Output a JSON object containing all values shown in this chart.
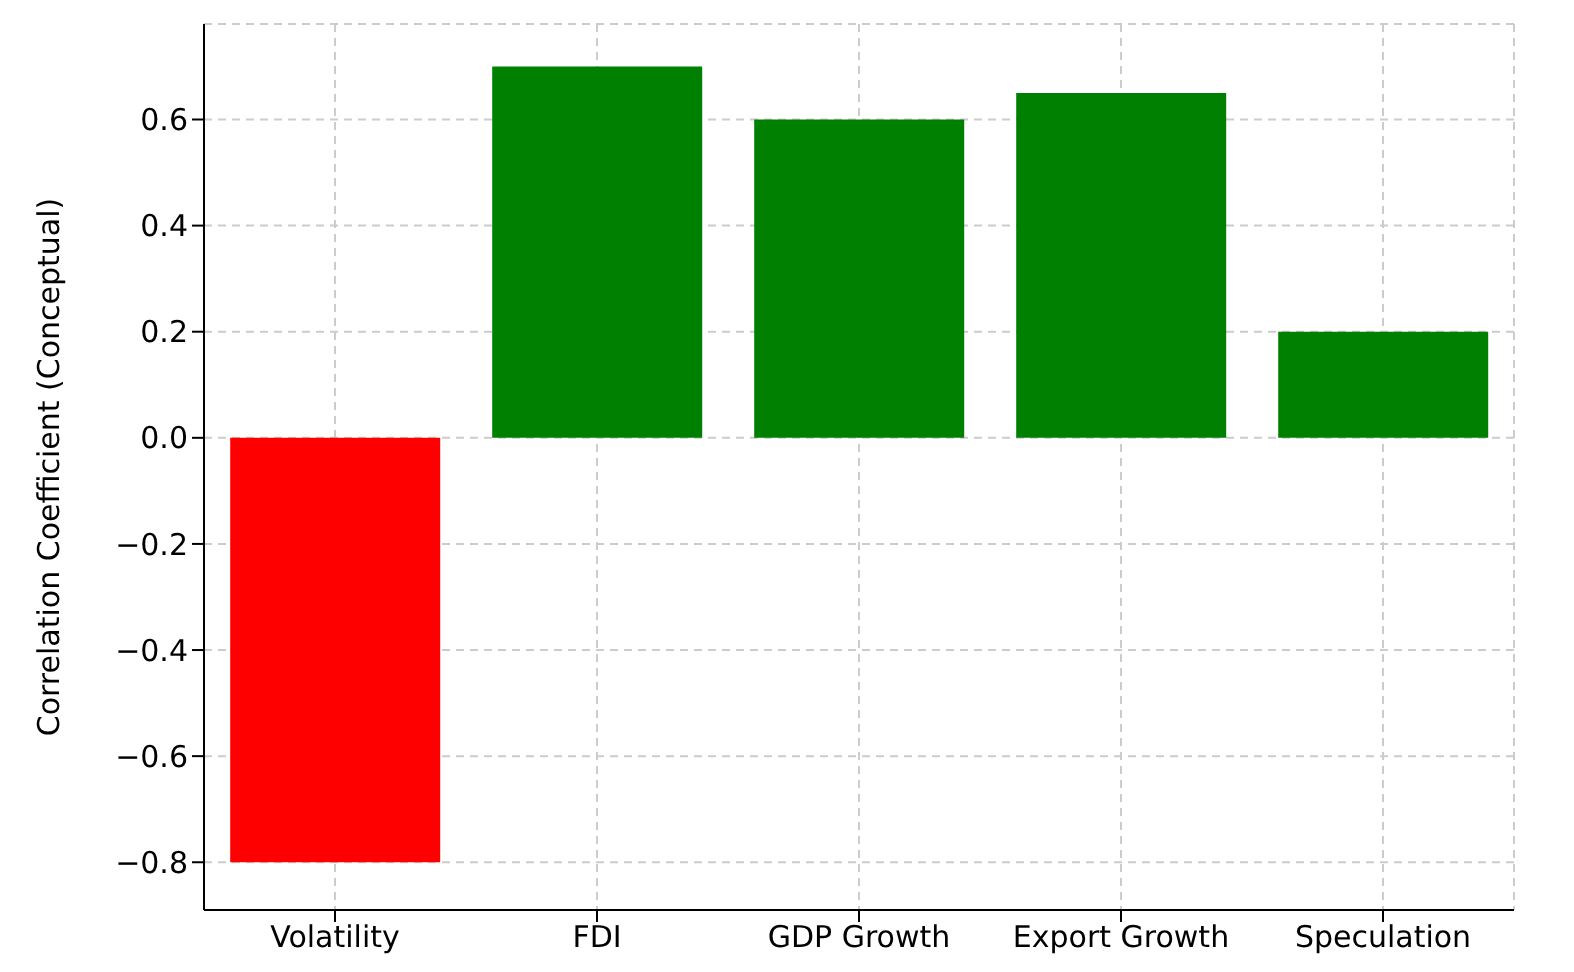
{
  "chart_data": {
    "type": "bar",
    "ylabel": "Correlation Coefficient (Conceptual)",
    "categories": [
      "Volatility",
      "FDI",
      "GDP Growth",
      "Export Growth",
      "Speculation"
    ],
    "values": [
      -0.8,
      0.7,
      0.6,
      0.65,
      0.2
    ],
    "colors": [
      "#ff0000",
      "#008000",
      "#008000",
      "#008000",
      "#008000"
    ],
    "ylim": [
      -0.89,
      0.78
    ],
    "yticks": [
      {
        "value": -0.8,
        "label": "−0.8"
      },
      {
        "value": -0.6,
        "label": "−0.6"
      },
      {
        "value": -0.4,
        "label": "−0.4"
      },
      {
        "value": -0.2,
        "label": "−0.2"
      },
      {
        "value": 0,
        "label": "0.0"
      },
      {
        "value": 0.2,
        "label": "0.2"
      },
      {
        "value": 0.4,
        "label": "0.4"
      },
      {
        "value": 0.6,
        "label": "0.6"
      }
    ],
    "grid": true
  }
}
